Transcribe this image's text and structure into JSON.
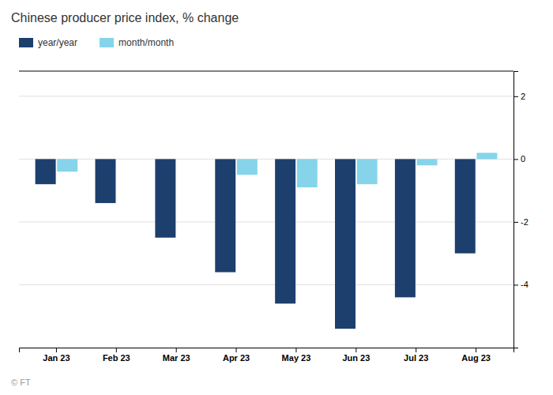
{
  "chart_data": {
    "type": "bar",
    "title": "Chinese producer price index, % change",
    "categories": [
      "Jan 23",
      "Feb 23",
      "Mar 23",
      "Apr 23",
      "May 23",
      "Jun 23",
      "Jul 23",
      "Aug 23"
    ],
    "series": [
      {
        "name": "year/year",
        "color": "#1c3f6e",
        "values": [
          -0.8,
          -1.4,
          -2.5,
          -3.6,
          -4.6,
          -5.4,
          -4.4,
          -3.0
        ]
      },
      {
        "name": "month/month",
        "color": "#85d4ea",
        "values": [
          -0.4,
          0.0,
          0.0,
          -0.5,
          -0.9,
          -0.8,
          -0.2,
          0.2
        ]
      }
    ],
    "ylim": [
      -6.0,
      2.8
    ],
    "yticks": [
      -4,
      -2,
      0,
      2
    ],
    "grid": true,
    "legend": "upper-left",
    "annotations": [
      "© FT"
    ]
  }
}
